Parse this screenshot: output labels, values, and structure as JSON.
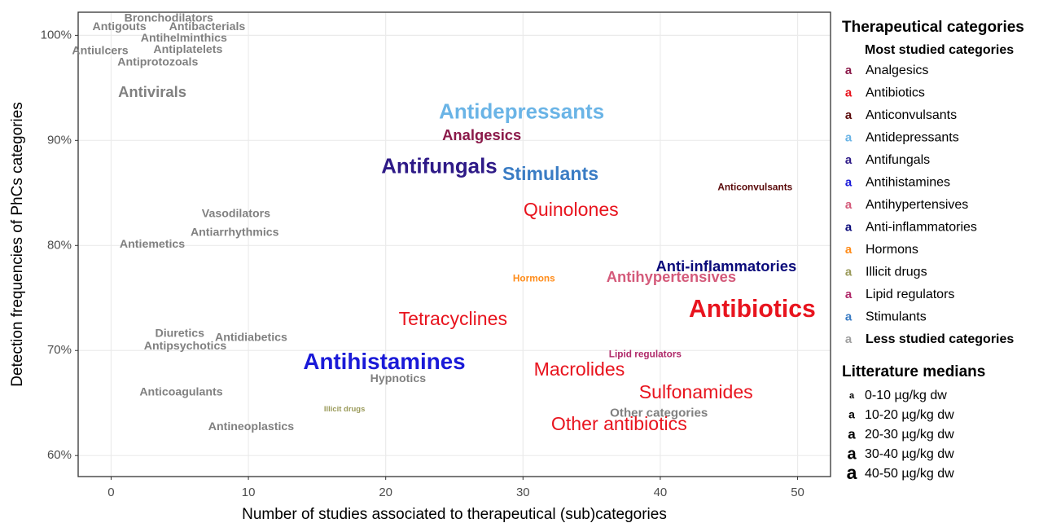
{
  "chart_data": {
    "type": "text-scatter",
    "x_label": "Number of studies associated to therapeutical (sub)categories",
    "y_label": "Detection frequencies of PhCs categories",
    "xlim": [
      -2.4,
      52.4
    ],
    "ylim": [
      58.0,
      102.2
    ],
    "xticks": [
      0,
      10,
      20,
      30,
      40,
      50
    ],
    "yticks": [
      {
        "value": 60,
        "label": "60%"
      },
      {
        "value": 70,
        "label": "70%"
      },
      {
        "value": 80,
        "label": "80%"
      },
      {
        "value": 90,
        "label": "90%"
      },
      {
        "value": 100,
        "label": "100%"
      }
    ],
    "grid": true,
    "points": [
      {
        "label": "Bronchodilators",
        "x": 4.2,
        "y": 101.6,
        "size": 11,
        "color": "#808080"
      },
      {
        "label": "Antigouts",
        "x": 0.6,
        "y": 100.8,
        "size": 11,
        "color": "#808080"
      },
      {
        "label": "Antibacterials",
        "x": 7.0,
        "y": 100.8,
        "size": 11,
        "color": "#808080"
      },
      {
        "label": "Antihelminthics",
        "x": 5.3,
        "y": 99.7,
        "size": 11,
        "color": "#808080"
      },
      {
        "label": "Antiulcers",
        "x": -0.8,
        "y": 98.5,
        "size": 11,
        "color": "#808080"
      },
      {
        "label": "Antiplatelets",
        "x": 5.6,
        "y": 98.6,
        "size": 11,
        "color": "#808080"
      },
      {
        "label": "Antiprotozoals",
        "x": 3.4,
        "y": 97.4,
        "size": 11,
        "color": "#808080"
      },
      {
        "label": "Antivirals",
        "x": 3.0,
        "y": 94.5,
        "size": 20,
        "color": "#808080"
      },
      {
        "label": "Antidepressants",
        "x": 29.9,
        "y": 92.6,
        "size": 36,
        "color": "#6ab4e6"
      },
      {
        "label": "Analgesics",
        "x": 27.0,
        "y": 90.4,
        "size": 20,
        "color": "#8b1a4a"
      },
      {
        "label": "Antifungals",
        "x": 23.9,
        "y": 87.4,
        "size": 36,
        "color": "#2e1a87"
      },
      {
        "label": "Stimulants",
        "x": 32.0,
        "y": 86.7,
        "size": 30,
        "color": "#3a7cc4"
      },
      {
        "label": "Anticonvulsants",
        "x": 46.9,
        "y": 85.5,
        "size": 6,
        "color": "#5a0a0a"
      },
      {
        "label": "Quinolones",
        "x": 33.5,
        "y": 83.3,
        "size": 30,
        "color": "#e8141e"
      },
      {
        "label": "Vasodilators",
        "x": 9.1,
        "y": 83.0,
        "size": 11,
        "color": "#808080"
      },
      {
        "label": "Antiarrhythmics",
        "x": 9.0,
        "y": 81.2,
        "size": 11,
        "color": "#808080"
      },
      {
        "label": "Antiemetics",
        "x": 3.0,
        "y": 80.1,
        "size": 11,
        "color": "#808080"
      },
      {
        "label": "Anti-inflammatories",
        "x": 44.8,
        "y": 77.9,
        "size": 20,
        "color": "#0a0a7a"
      },
      {
        "label": "Hormons",
        "x": 30.8,
        "y": 76.8,
        "size": 6,
        "color": "#ff8c1a"
      },
      {
        "label": "Antihypertensives",
        "x": 40.8,
        "y": 76.9,
        "size": 20,
        "color": "#d45a7a"
      },
      {
        "label": "Antibiotics",
        "x": 46.7,
        "y": 73.8,
        "size": 45,
        "color": "#e8141e"
      },
      {
        "label": "Tetracyclines",
        "x": 24.9,
        "y": 72.9,
        "size": 30,
        "color": "#e8141e"
      },
      {
        "label": "Diuretics",
        "x": 5.0,
        "y": 71.6,
        "size": 11,
        "color": "#808080"
      },
      {
        "label": "Antidiabetics",
        "x": 10.2,
        "y": 71.2,
        "size": 11,
        "color": "#808080"
      },
      {
        "label": "Antipsychotics",
        "x": 5.4,
        "y": 70.4,
        "size": 11,
        "color": "#808080"
      },
      {
        "label": "Lipid regulators",
        "x": 38.9,
        "y": 69.6,
        "size": 6,
        "color": "#b02a6a"
      },
      {
        "label": "Antihistamines",
        "x": 19.9,
        "y": 68.8,
        "size": 40,
        "color": "#1a1ad8"
      },
      {
        "label": "Macrolides",
        "x": 34.1,
        "y": 68.1,
        "size": 30,
        "color": "#e8141e"
      },
      {
        "label": "Hypnotics",
        "x": 20.9,
        "y": 67.3,
        "size": 11,
        "color": "#808080"
      },
      {
        "label": "Sulfonamides",
        "x": 42.6,
        "y": 65.9,
        "size": 30,
        "color": "#e8141e"
      },
      {
        "label": "Anticoagulants",
        "x": 5.1,
        "y": 66.0,
        "size": 11,
        "color": "#808080"
      },
      {
        "label": "Other categories",
        "x": 39.9,
        "y": 64.0,
        "size": 13,
        "color": "#808080"
      },
      {
        "label": "Illicit drugs",
        "x": 17.0,
        "y": 64.4,
        "size": 1,
        "color": "#9a9a5a"
      },
      {
        "label": "Other antibiotics",
        "x": 37.0,
        "y": 62.9,
        "size": 30,
        "color": "#e8141e"
      },
      {
        "label": "Antineoplastics",
        "x": 10.2,
        "y": 62.7,
        "size": 11,
        "color": "#808080"
      }
    ],
    "legend": {
      "title": "Therapeutical categories",
      "subtitle": "Most studied categories",
      "key_glyph": "a",
      "entries": [
        {
          "name": "Analgesics",
          "color": "#8b1a4a"
        },
        {
          "name": "Antibiotics",
          "color": "#e8141e"
        },
        {
          "name": "Anticonvulsants",
          "color": "#5a0a0a"
        },
        {
          "name": "Antidepressants",
          "color": "#6ab4e6"
        },
        {
          "name": "Antifungals",
          "color": "#2e1a87"
        },
        {
          "name": "Antihistamines",
          "color": "#1a1ad8"
        },
        {
          "name": "Antihypertensives",
          "color": "#d45a7a"
        },
        {
          "name": "Anti-inflammatories",
          "color": "#0a0a7a"
        },
        {
          "name": "Hormons",
          "color": "#ff8c1a"
        },
        {
          "name": "Illicit drugs",
          "color": "#9a9a5a"
        },
        {
          "name": "Lipid regulators",
          "color": "#b02a6a"
        },
        {
          "name": "Stimulants",
          "color": "#3a7cc4"
        }
      ],
      "other": {
        "name": "Less studied categories",
        "color": "#a0a0a0"
      },
      "size_title": "Litterature medians",
      "size_entries": [
        "0-10 µg/kg dw",
        "10-20 µg/kg dw",
        "20-30 µg/kg dw",
        "30-40 µg/kg dw",
        "40-50 µg/kg dw"
      ]
    }
  }
}
